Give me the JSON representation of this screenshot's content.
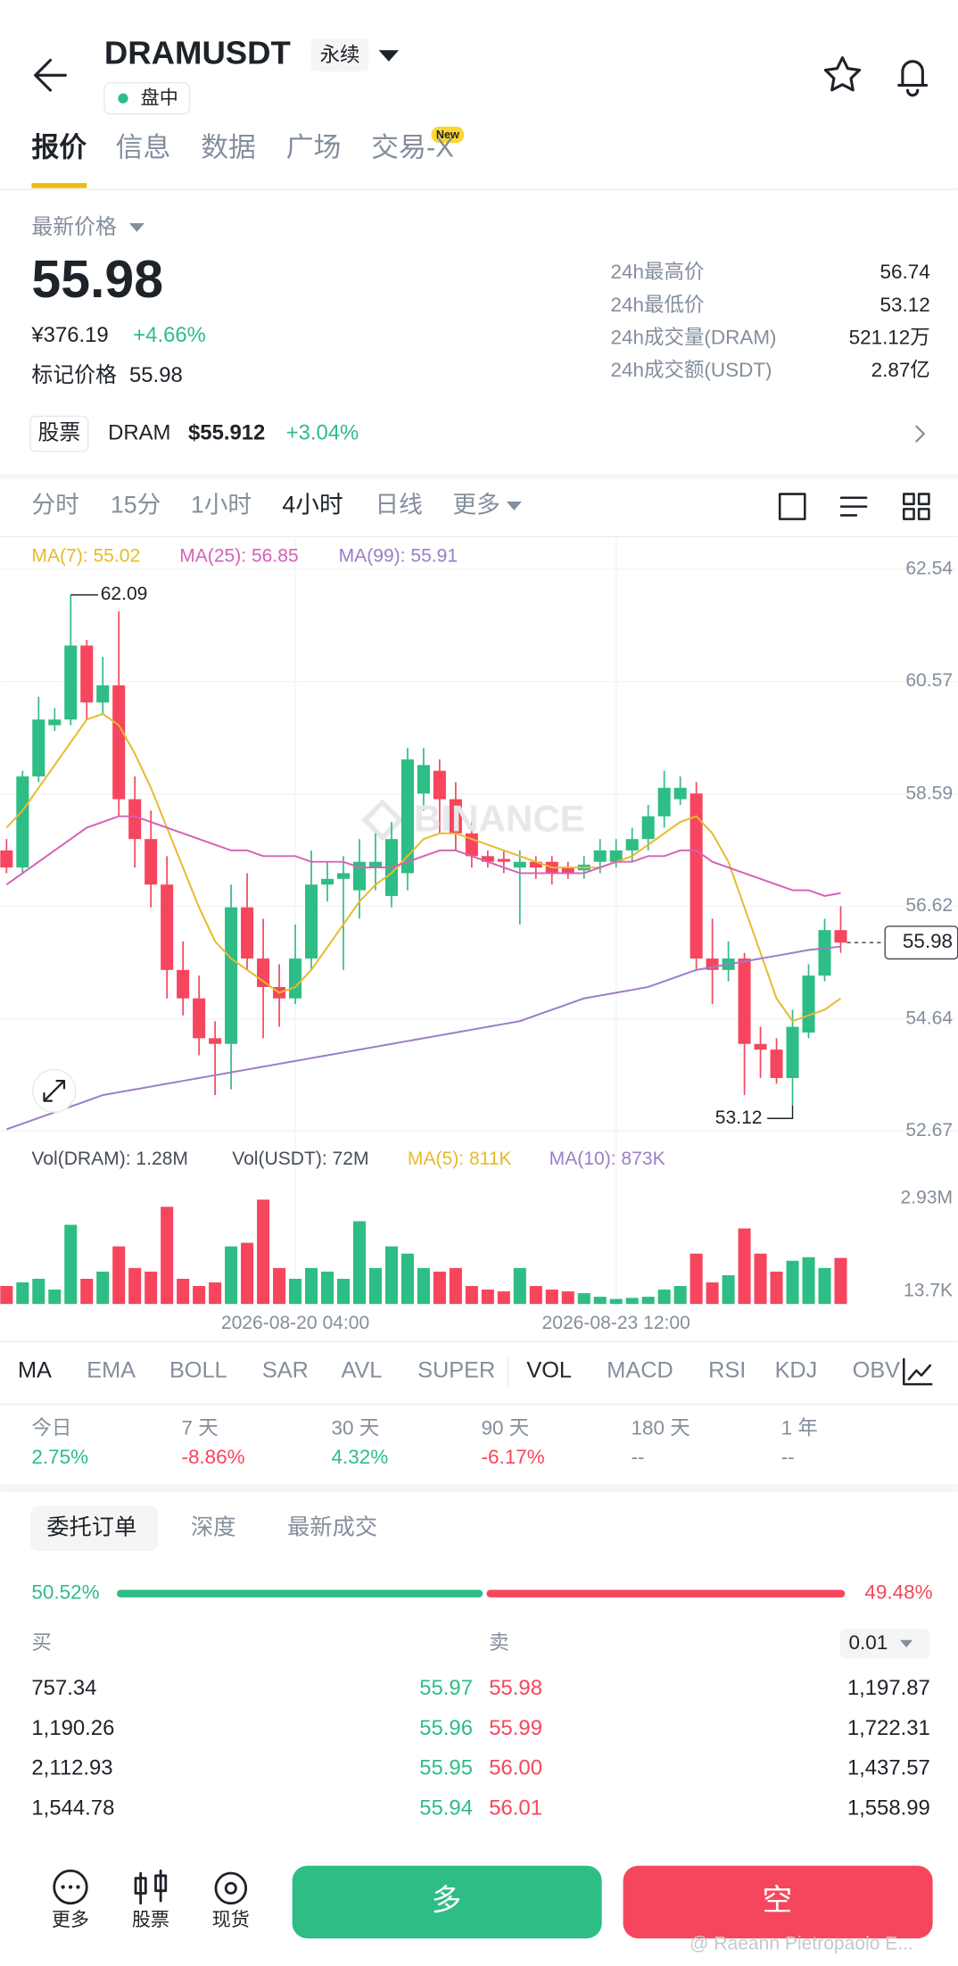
{
  "header": {
    "symbol": "DRAMUSDT",
    "contract": "永续",
    "status": "盘中"
  },
  "tabs": [
    "报价",
    "信息",
    "数据",
    "广场",
    "交易-X"
  ],
  "new_badge": "New",
  "price": {
    "label": "最新价格",
    "last": "55.98",
    "cny": "¥376.19",
    "change": "+4.66%",
    "mark_label": "标记价格",
    "mark": "55.98"
  },
  "stats": [
    [
      "24h最高价",
      "56.74"
    ],
    [
      "24h最低价",
      "53.12"
    ],
    [
      "24h成交量(DRAM)",
      "521.12万"
    ],
    [
      "24h成交额(USDT)",
      "2.87亿"
    ]
  ],
  "stock": {
    "tag": "股票",
    "name": "DRAM",
    "price": "$55.912",
    "change": "+3.04%"
  },
  "intervals": [
    "分时",
    "15分",
    "1小时",
    "4小时",
    "日线",
    "更多"
  ],
  "watermark": "BINANCE",
  "chart_data": [
    {
      "type": "candlestick",
      "categories": [
        null,
        null,
        null,
        null,
        null,
        null,
        null,
        null,
        null,
        null,
        null,
        null,
        null,
        null,
        null,
        null,
        null,
        null,
        "2026-08-20 04:00",
        null,
        null,
        null,
        null,
        null,
        null,
        null,
        null,
        null,
        null,
        null,
        null,
        null,
        null,
        null,
        null,
        null,
        null,
        null,
        "2026-08-23 12:00",
        null,
        null,
        null,
        null,
        null,
        null,
        null,
        null,
        null,
        null,
        null,
        null,
        null,
        null
      ],
      "open": [
        57.6,
        57.3,
        58.9,
        59.8,
        59.9,
        61.2,
        60.2,
        60.5,
        58.5,
        57.8,
        57.0,
        55.5,
        55.0,
        54.3,
        54.2,
        56.6,
        55.7,
        55.2,
        55.0,
        55.7,
        57.0,
        57.1,
        56.9,
        57.3,
        56.8,
        57.2,
        58.6,
        59.0,
        58.5,
        57.9,
        57.5,
        57.45,
        57.3,
        57.4,
        57.4,
        57.3,
        57.25,
        57.4,
        57.4,
        57.6,
        57.8,
        58.2,
        58.5,
        58.6,
        55.7,
        55.5,
        55.7,
        54.2,
        54.1,
        53.6,
        54.4,
        55.4,
        56.2
      ],
      "high": [
        57.8,
        59.0,
        60.3,
        60.1,
        62.09,
        61.3,
        61.0,
        61.8,
        58.9,
        58.3,
        57.5,
        56.0,
        55.4,
        54.6,
        57.0,
        57.2,
        56.4,
        55.6,
        56.3,
        57.6,
        57.4,
        57.5,
        57.8,
        57.9,
        58.1,
        59.4,
        59.4,
        59.2,
        58.8,
        58.1,
        57.6,
        57.6,
        57.6,
        57.5,
        57.5,
        57.4,
        57.5,
        57.8,
        57.8,
        58.0,
        58.4,
        59.0,
        58.9,
        58.8,
        56.4,
        56.0,
        55.8,
        54.5,
        54.3,
        54.8,
        55.6,
        56.4,
        56.62
      ],
      "low": [
        57.2,
        57.2,
        58.8,
        59.7,
        59.8,
        59.9,
        60.0,
        58.2,
        57.3,
        56.6,
        55.0,
        54.7,
        54.0,
        53.3,
        53.4,
        55.5,
        54.3,
        54.5,
        54.9,
        55.5,
        56.7,
        55.5,
        56.4,
        56.9,
        56.6,
        56.9,
        58.3,
        57.9,
        57.6,
        57.3,
        57.3,
        57.2,
        56.3,
        57.1,
        57.0,
        57.1,
        57.1,
        57.2,
        57.3,
        57.4,
        57.6,
        58.0,
        58.4,
        55.5,
        54.9,
        55.3,
        53.3,
        53.6,
        53.5,
        53.12,
        54.3,
        55.3,
        55.8
      ],
      "close": [
        57.3,
        58.9,
        59.9,
        59.9,
        61.2,
        60.2,
        60.5,
        58.5,
        57.8,
        57.0,
        55.5,
        55.0,
        54.3,
        54.2,
        56.6,
        55.7,
        55.2,
        55.0,
        55.7,
        57.0,
        57.1,
        57.2,
        57.4,
        57.4,
        57.8,
        59.2,
        59.1,
        58.5,
        57.9,
        57.5,
        57.4,
        57.4,
        57.4,
        57.3,
        57.2,
        57.2,
        57.35,
        57.6,
        57.6,
        57.8,
        58.2,
        58.7,
        58.7,
        55.7,
        55.5,
        55.7,
        54.2,
        54.1,
        53.6,
        54.5,
        55.4,
        56.2,
        55.98
      ],
      "series": [
        {
          "name": "MA(7): 55.02",
          "color": "#e8b92c",
          "values": [
            58.0,
            58.3,
            58.7,
            59.1,
            59.5,
            59.9,
            60.0,
            59.8,
            59.3,
            58.7,
            58.0,
            57.3,
            56.6,
            56.0,
            55.7,
            55.5,
            55.3,
            55.1,
            55.2,
            55.5,
            55.9,
            56.3,
            56.7,
            57.0,
            57.2,
            57.5,
            57.8,
            57.9,
            57.9,
            57.8,
            57.7,
            57.6,
            57.5,
            57.4,
            57.3,
            57.3,
            57.3,
            57.3,
            57.4,
            57.5,
            57.7,
            57.9,
            58.1,
            58.2,
            57.9,
            57.4,
            56.6,
            55.8,
            55.0,
            54.6,
            54.7,
            54.8,
            55.0
          ]
        },
        {
          "name": "MA(25): 56.85",
          "color": "#d660b8",
          "values": [
            57.0,
            57.2,
            57.4,
            57.6,
            57.8,
            58.0,
            58.1,
            58.2,
            58.2,
            58.1,
            58.0,
            57.9,
            57.8,
            57.7,
            57.6,
            57.6,
            57.5,
            57.5,
            57.5,
            57.4,
            57.4,
            57.4,
            57.3,
            57.3,
            57.3,
            57.4,
            57.5,
            57.6,
            57.6,
            57.5,
            57.4,
            57.3,
            57.2,
            57.2,
            57.2,
            57.2,
            57.2,
            57.3,
            57.4,
            57.4,
            57.5,
            57.5,
            57.6,
            57.6,
            57.4,
            57.3,
            57.2,
            57.1,
            57.0,
            56.9,
            56.9,
            56.8,
            56.85
          ]
        },
        {
          "name": "MA(99): 55.91",
          "color": "#9b7dc8",
          "values": [
            52.7,
            52.8,
            52.9,
            53.0,
            53.1,
            53.2,
            53.3,
            53.35,
            53.4,
            53.45,
            53.5,
            53.55,
            53.6,
            53.65,
            53.7,
            53.75,
            53.8,
            53.85,
            53.9,
            53.95,
            54.0,
            54.05,
            54.1,
            54.15,
            54.2,
            54.25,
            54.3,
            54.35,
            54.4,
            54.45,
            54.5,
            54.55,
            54.6,
            54.7,
            54.8,
            54.9,
            55.0,
            55.05,
            55.1,
            55.15,
            55.2,
            55.3,
            55.4,
            55.5,
            55.55,
            55.6,
            55.65,
            55.7,
            55.75,
            55.8,
            55.85,
            55.88,
            55.91
          ]
        }
      ],
      "ylim": [
        52.45,
        63.07
      ],
      "yticks": [
        62.54,
        60.57,
        58.59,
        56.62,
        54.64,
        52.67
      ],
      "grid": true
    },
    {
      "type": "bar",
      "legend": [
        {
          "text": "Vol(DRAM): 1.28M",
          "color": "#474d57"
        },
        {
          "text": "Vol(USDT): 72M",
          "color": "#474d57"
        },
        {
          "text": "MA(5): 811K",
          "color": "#e8b92c"
        },
        {
          "text": "MA(10): 873K",
          "color": "#9b7dc8"
        }
      ],
      "values": [
        0.5,
        0.6,
        0.7,
        0.4,
        2.2,
        0.7,
        0.9,
        1.6,
        1.0,
        0.9,
        2.7,
        0.7,
        0.5,
        0.6,
        1.6,
        1.7,
        2.9,
        1.0,
        0.7,
        1.0,
        0.9,
        0.7,
        2.3,
        1.0,
        1.6,
        1.4,
        1.0,
        0.9,
        1.0,
        0.5,
        0.4,
        0.35,
        1.0,
        0.5,
        0.4,
        0.35,
        0.3,
        0.2,
        0.14,
        0.17,
        0.2,
        0.4,
        0.5,
        1.4,
        0.6,
        0.8,
        2.1,
        1.4,
        0.9,
        1.2,
        1.3,
        1.0,
        1.28
      ],
      "ylim": [
        0,
        3.31
      ],
      "yticks": [
        {
          "value": 2.93,
          "label": "2.93M"
        },
        {
          "value": 0.0137,
          "label": "13.7K"
        }
      ]
    }
  ],
  "indicators": [
    "MA",
    "EMA",
    "BOLL",
    "SAR",
    "AVL",
    "SUPER",
    "VOL",
    "MACD",
    "RSI",
    "KDJ",
    "OBV"
  ],
  "performance": [
    [
      "今日",
      "2.75%"
    ],
    [
      "7 天",
      "-8.86%"
    ],
    [
      "30 天",
      "4.32%"
    ],
    [
      "90 天",
      "-6.17%"
    ],
    [
      "180 天",
      "--"
    ],
    [
      "1 年",
      "--"
    ]
  ],
  "book_tabs": [
    "委托订单",
    "深度",
    "最新成交"
  ],
  "ratio": {
    "buy": {
      "value": 50.52,
      "label": "50.52%"
    },
    "sell": {
      "value": 49.48,
      "label": "49.48%"
    }
  },
  "book_header": {
    "buy": "买",
    "sell": "卖",
    "precision": "0.01"
  },
  "book_rows": [
    [
      "757.34",
      "55.97",
      "55.98",
      "1,197.87"
    ],
    [
      "1,190.26",
      "55.96",
      "55.99",
      "1,722.31"
    ],
    [
      "2,112.93",
      "55.95",
      "56.00",
      "1,437.57"
    ],
    [
      "1,544.78",
      "55.94",
      "56.01",
      "1,558.99"
    ]
  ],
  "bottom": {
    "more": "更多",
    "stock": "股票",
    "spot": "现货",
    "long": "多",
    "short": "空"
  },
  "credit": "@ Raeann Pietropaolo E..."
}
